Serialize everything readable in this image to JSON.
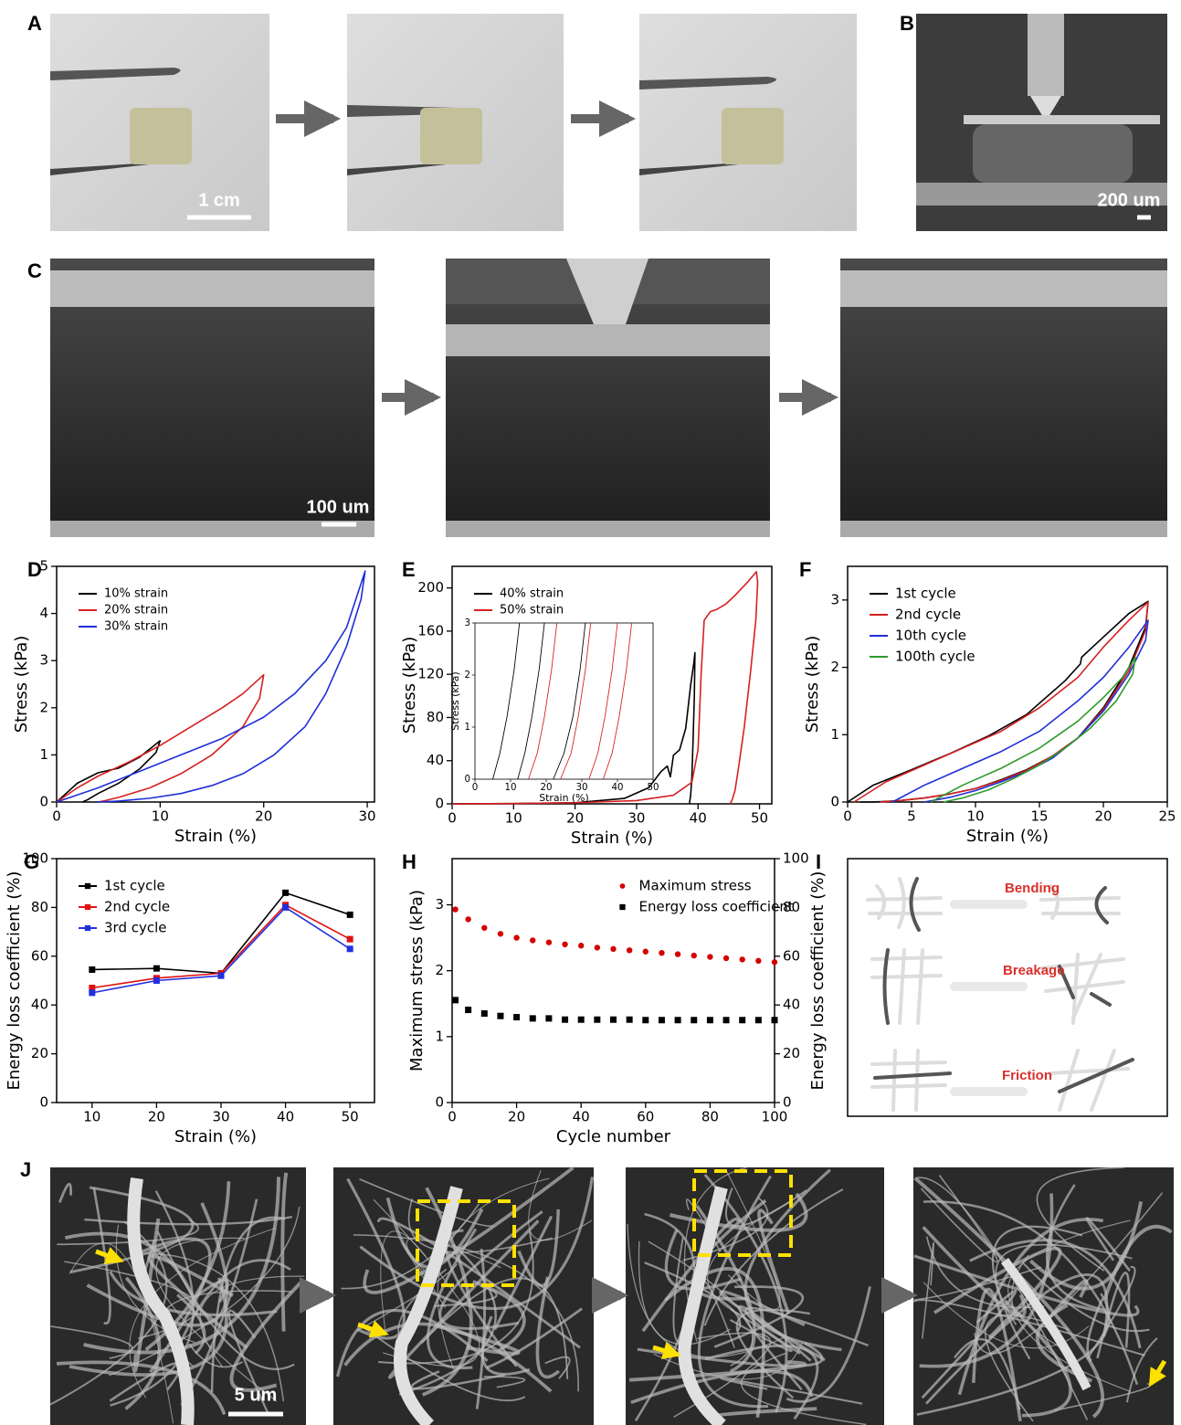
{
  "panels": {
    "labels": [
      "A",
      "B",
      "C",
      "D",
      "E",
      "F",
      "G",
      "H",
      "I",
      "J"
    ],
    "scale_bars": [
      "1 cm",
      "200 um",
      "100 um",
      "5 um"
    ]
  },
  "diagram": {
    "steps": [
      "Bending",
      "Breakage",
      "Friction"
    ]
  },
  "chart_data": [
    {
      "type": "line",
      "xlabel": "Strain (%)",
      "ylabel": "Stress (kPa)",
      "xlim": [
        0,
        30.7
      ],
      "ylim": [
        0,
        5
      ],
      "xticks": [
        0,
        10,
        20,
        30
      ],
      "yticks": [
        0,
        1,
        2,
        3,
        4,
        5
      ],
      "legend": "upper left",
      "series": [
        {
          "name": "10% strain",
          "color": "#000000",
          "x": [
            0,
            1,
            2,
            4,
            6,
            8,
            10,
            9.6,
            8,
            6,
            4,
            3,
            2.5
          ],
          "values": [
            0,
            0.2,
            0.4,
            0.62,
            0.72,
            0.95,
            1.3,
            1.05,
            0.7,
            0.4,
            0.18,
            0.05,
            0
          ]
        },
        {
          "name": "20% strain",
          "color": "#d62020",
          "x": [
            0,
            2,
            4,
            7,
            10,
            13,
            16,
            18,
            20,
            19.6,
            18,
            15,
            12,
            9,
            6,
            4.5,
            4
          ],
          "values": [
            0,
            0.3,
            0.55,
            0.85,
            1.2,
            1.6,
            2.0,
            2.3,
            2.7,
            2.2,
            1.6,
            1.0,
            0.6,
            0.3,
            0.1,
            0.02,
            0
          ]
        },
        {
          "name": "30% strain",
          "color": "#1f2fd6",
          "x": [
            0,
            4,
            8,
            12,
            16,
            20,
            23,
            26,
            28,
            29.8,
            29.4,
            28,
            26,
            24,
            21,
            18,
            15,
            12,
            9,
            6,
            4
          ],
          "values": [
            0,
            0.3,
            0.65,
            1.0,
            1.35,
            1.8,
            2.3,
            3.0,
            3.7,
            4.9,
            4.3,
            3.3,
            2.3,
            1.6,
            1.0,
            0.6,
            0.35,
            0.18,
            0.08,
            0.02,
            0
          ]
        }
      ]
    },
    {
      "type": "line",
      "xlabel": "Strain (%)",
      "ylabel": "Stress (kPa)",
      "xlim": [
        0,
        52
      ],
      "ylim": [
        0,
        220
      ],
      "xticks": [
        0,
        10,
        20,
        30,
        40,
        50
      ],
      "yticks": [
        0,
        40,
        80,
        120,
        160,
        200
      ],
      "legend": "upper left",
      "series": [
        {
          "name": "40% strain",
          "color": "#000000",
          "x": [
            0,
            10,
            20,
            28,
            32,
            34,
            35,
            35.5,
            36,
            37,
            38,
            38.8,
            39.3,
            39.5,
            39.4,
            39.2,
            39,
            38.8,
            38.6
          ],
          "values": [
            0,
            0.3,
            1,
            5,
            15,
            30,
            35,
            25,
            45,
            50,
            70,
            110,
            130,
            140,
            100,
            60,
            25,
            8,
            0
          ]
        },
        {
          "name": "50% strain",
          "color": "#d62020",
          "x": [
            0,
            10,
            20,
            30,
            36,
            39,
            40,
            40.5,
            41,
            42,
            43,
            44.5,
            46,
            48,
            49.5,
            49.7,
            49.4,
            48.5,
            47.5,
            46.5,
            46,
            45.5,
            45.2
          ],
          "values": [
            0,
            0.3,
            1,
            3,
            8,
            20,
            50,
            120,
            170,
            178,
            180,
            185,
            193,
            205,
            215,
            205,
            170,
            120,
            70,
            30,
            12,
            3,
            0
          ]
        }
      ]
    },
    {
      "type": "line",
      "xlabel": "Strain (%)",
      "ylabel": "Stress (kPa)",
      "xlim": [
        0,
        50
      ],
      "ylim": [
        0,
        3
      ],
      "xticks": [
        0,
        10,
        20,
        30,
        40,
        50
      ],
      "yticks": [
        0,
        1,
        2,
        3
      ],
      "series": [
        {
          "color": "#000000",
          "x": [
            5,
            7,
            9,
            11,
            12.5
          ],
          "values": [
            0,
            0.5,
            1.2,
            2.1,
            3
          ]
        },
        {
          "color": "#000000",
          "x": [
            12,
            14,
            16,
            18,
            19.5
          ],
          "values": [
            0,
            0.5,
            1.2,
            2.1,
            3
          ]
        },
        {
          "color": "#000000",
          "x": [
            22,
            25,
            27.5,
            29.5,
            31
          ],
          "values": [
            0,
            0.5,
            1.2,
            2.1,
            3
          ]
        },
        {
          "color": "#d62020",
          "x": [
            15,
            17.5,
            19.5,
            21.5,
            23
          ],
          "values": [
            0,
            0.5,
            1.2,
            2.1,
            3
          ]
        },
        {
          "color": "#d62020",
          "x": [
            24,
            27,
            29,
            31,
            32.5
          ],
          "values": [
            0,
            0.5,
            1.2,
            2.1,
            3
          ]
        },
        {
          "color": "#d62020",
          "x": [
            32,
            34.5,
            36.5,
            38.5,
            40
          ],
          "values": [
            0,
            0.5,
            1.2,
            2.1,
            3
          ]
        },
        {
          "color": "#d62020",
          "x": [
            36,
            38.5,
            40.5,
            42.5,
            44
          ],
          "values": [
            0,
            0.5,
            1.2,
            2.1,
            3
          ]
        }
      ]
    },
    {
      "type": "line",
      "xlabel": "Strain (%)",
      "ylabel": "Stress (kPa)",
      "xlim": [
        0,
        25
      ],
      "ylim": [
        0,
        3.5
      ],
      "xticks": [
        0,
        5,
        10,
        15,
        20,
        25
      ],
      "yticks": [
        0,
        1,
        2,
        3
      ],
      "legend": "upper left",
      "series": [
        {
          "name": "1st cycle",
          "color": "#000000",
          "x": [
            0,
            2,
            5,
            8,
            11,
            14,
            17,
            18.2,
            18.3,
            20,
            22,
            23.5,
            23.3,
            22,
            20,
            18,
            16,
            14,
            12,
            10,
            8,
            6,
            4,
            2,
            1
          ],
          "values": [
            0,
            0.25,
            0.48,
            0.72,
            0.98,
            1.3,
            1.8,
            2.05,
            2.15,
            2.45,
            2.8,
            2.98,
            2.6,
            2.0,
            1.4,
            0.95,
            0.68,
            0.48,
            0.33,
            0.2,
            0.12,
            0.06,
            0.02,
            0,
            0
          ]
        },
        {
          "name": "2nd cycle",
          "color": "#d62020",
          "x": [
            0.5,
            3,
            6,
            9,
            12,
            15,
            18,
            20,
            22,
            23.5,
            23.3,
            22,
            20,
            18,
            16,
            14,
            12,
            10,
            8,
            6,
            4,
            2.5
          ],
          "values": [
            0,
            0.3,
            0.55,
            0.8,
            1.05,
            1.4,
            1.85,
            2.3,
            2.7,
            2.97,
            2.55,
            1.95,
            1.38,
            0.95,
            0.68,
            0.47,
            0.32,
            0.2,
            0.12,
            0.06,
            0.02,
            0
          ]
        },
        {
          "name": "10th cycle",
          "color": "#1f2fd6",
          "x": [
            3.5,
            6,
            9,
            12,
            15,
            18,
            20,
            22,
            23.5,
            23.3,
            22,
            20,
            18,
            16,
            14,
            12,
            10,
            8,
            6
          ],
          "values": [
            0,
            0.25,
            0.5,
            0.75,
            1.05,
            1.5,
            1.85,
            2.3,
            2.7,
            2.4,
            1.9,
            1.35,
            0.95,
            0.65,
            0.45,
            0.3,
            0.17,
            0.07,
            0
          ]
        },
        {
          "name": "100th cycle",
          "color": "#2e9a2e",
          "x": [
            6.5,
            9,
            12,
            15,
            18,
            20,
            21.5,
            22.5,
            22.3,
            21,
            19,
            17,
            15,
            13,
            11,
            9,
            7.5
          ],
          "values": [
            0,
            0.25,
            0.5,
            0.8,
            1.2,
            1.55,
            1.85,
            2.15,
            1.9,
            1.5,
            1.1,
            0.8,
            0.55,
            0.35,
            0.18,
            0.06,
            0
          ]
        }
      ]
    },
    {
      "type": "line",
      "xlabel": "Strain (%)",
      "ylabel": "Energy loss coefficient (%)",
      "xlim": [
        4.5,
        53.8
      ],
      "ylim": [
        0,
        100
      ],
      "xticks": [
        10,
        20,
        30,
        40,
        50
      ],
      "yticks": [
        0,
        20,
        40,
        60,
        80,
        100
      ],
      "legend": "upper left",
      "series": [
        {
          "name": "1st cycle",
          "color": "#000000",
          "marker": "square",
          "x": [
            10,
            20,
            30,
            40,
            50
          ],
          "values": [
            54.5,
            55,
            53,
            86,
            77
          ]
        },
        {
          "name": "2nd cycle",
          "color": "#e01010",
          "marker": "square",
          "x": [
            10,
            20,
            30,
            40,
            50
          ],
          "values": [
            47,
            51,
            53,
            81,
            67
          ]
        },
        {
          "name": "3rd cycle",
          "color": "#2030e0",
          "marker": "square",
          "x": [
            10,
            20,
            30,
            40,
            50
          ],
          "values": [
            45,
            50,
            52,
            80,
            63
          ]
        }
      ]
    },
    {
      "type": "scatter",
      "xlabel": "Cycle number",
      "ylabel": "Maximum stress (kPa)",
      "y2label": "Energy loss coefficient (%)",
      "xlim": [
        0,
        100
      ],
      "ylim": [
        0,
        3.7
      ],
      "y2lim": [
        0,
        100
      ],
      "xticks": [
        0,
        20,
        40,
        60,
        80,
        100
      ],
      "yticks": [
        0,
        1,
        2,
        3
      ],
      "y2ticks": [
        0,
        20,
        40,
        60,
        80,
        100
      ],
      "y_color": "#d40000",
      "legend": "upper right",
      "series": [
        {
          "name": "Maximum stress",
          "color": "#d40000",
          "marker": "circle",
          "x": [
            1,
            5,
            10,
            15,
            20,
            25,
            30,
            35,
            40,
            45,
            50,
            55,
            60,
            65,
            70,
            75,
            80,
            85,
            90,
            95,
            100
          ],
          "values": [
            2.93,
            2.78,
            2.65,
            2.56,
            2.5,
            2.46,
            2.43,
            2.4,
            2.38,
            2.35,
            2.33,
            2.31,
            2.29,
            2.27,
            2.25,
            2.23,
            2.21,
            2.19,
            2.17,
            2.15,
            2.13
          ]
        },
        {
          "name": "Energy loss coefficient",
          "color": "#000000",
          "marker": "square",
          "axis": "y2",
          "x": [
            1,
            5,
            10,
            15,
            20,
            25,
            30,
            35,
            40,
            45,
            50,
            55,
            60,
            65,
            70,
            75,
            80,
            85,
            90,
            95,
            100
          ],
          "values": [
            42,
            38,
            36.5,
            35.5,
            35,
            34.5,
            34.5,
            34,
            34,
            34,
            34,
            34,
            33.8,
            33.8,
            33.8,
            33.8,
            33.8,
            33.8,
            33.8,
            33.8,
            33.8
          ]
        }
      ]
    }
  ]
}
